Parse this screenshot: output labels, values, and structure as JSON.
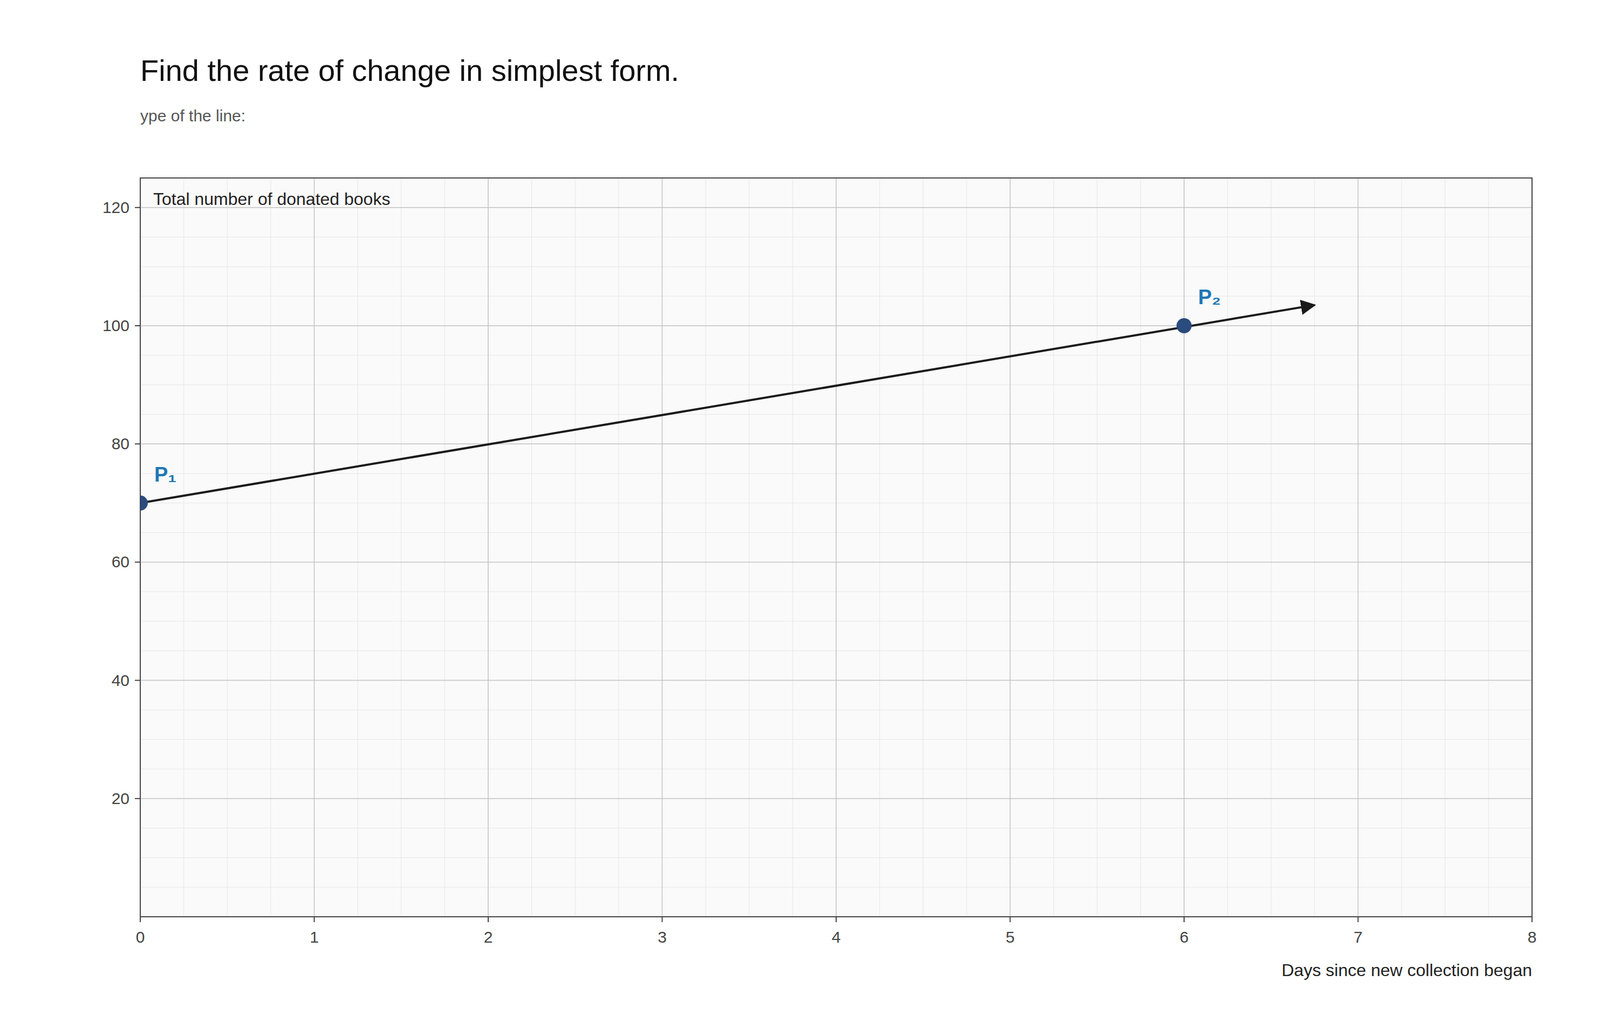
{
  "chart_data": {
    "type": "line",
    "title": "Find the rate of change in simplest form.",
    "subtitle": "ype of the line:",
    "y_label": "Total number of donated books",
    "x_label": "Days since new collection began",
    "xlim": [
      0,
      8
    ],
    "ylim": [
      0,
      125
    ],
    "xticks": [
      0,
      1,
      2,
      3,
      4,
      5,
      6,
      7,
      8
    ],
    "yticks": [
      20,
      40,
      60,
      80,
      100,
      120
    ],
    "grid": true,
    "series": [
      {
        "type": "line",
        "marker": "arrow",
        "line_style": "solid",
        "color": "#1a1a1a",
        "x": [
          0,
          6.75
        ],
        "values": [
          70,
          103.5
        ]
      },
      {
        "type": "scatter",
        "marker": "circle",
        "color": "#2b4b7e",
        "x": [
          0,
          6
        ],
        "values": [
          70,
          100
        ],
        "labels": [
          "P₁",
          "P₂"
        ]
      }
    ]
  }
}
